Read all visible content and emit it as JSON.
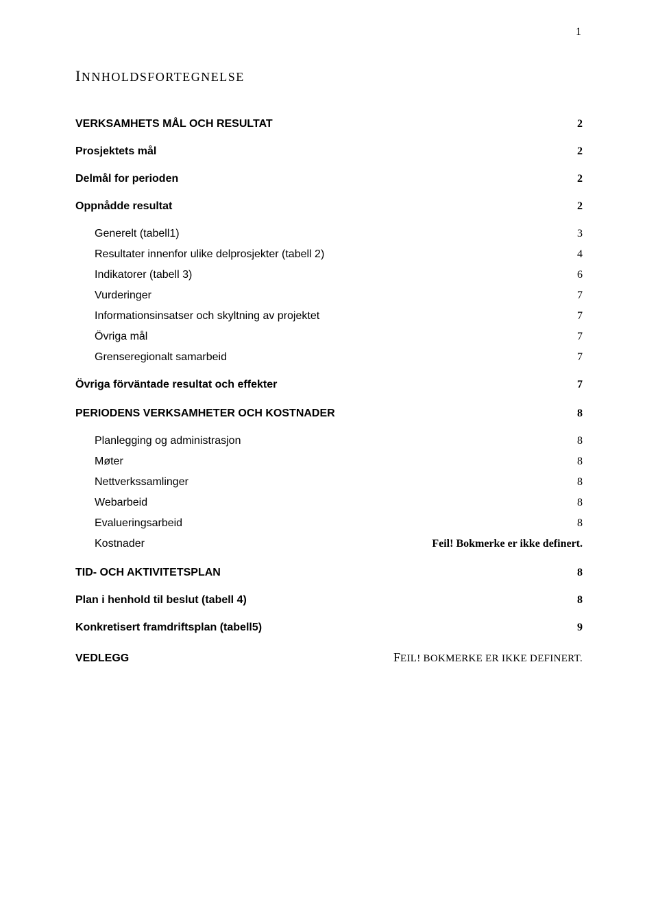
{
  "page_number": "1",
  "title_first": "I",
  "title_rest": "NNHOLDSFORTEGNELSE",
  "toc": {
    "s1": {
      "label": "VERKSAMHETS MÅL OCH RESULTAT",
      "page": "2"
    },
    "s1_1": {
      "label": "Prosjektets mål",
      "page": "2"
    },
    "s1_2": {
      "label": "Delmål for perioden",
      "page": "2"
    },
    "s1_3": {
      "label": "Oppnådde resultat",
      "page": "2"
    },
    "s1_3_a": {
      "label": "Generelt (tabell1)",
      "page": "3"
    },
    "s1_3_b": {
      "label": "Resultater innenfor ulike delprosjekter (tabell 2)",
      "page": "4"
    },
    "s1_3_c": {
      "label": "Indikatorer (tabell 3)",
      "page": "6"
    },
    "s1_3_d": {
      "label": "Vurderinger",
      "page": "7"
    },
    "s1_3_e": {
      "label": "Informationsinsatser och skyltning av projektet",
      "page": "7"
    },
    "s1_3_f": {
      "label": "Övriga mål",
      "page": "7"
    },
    "s1_3_g": {
      "label": "Grenseregionalt samarbeid",
      "page": "7"
    },
    "s1_4": {
      "label": "Övriga förväntade resultat och effekter",
      "page": "7"
    },
    "s2": {
      "label": "PERIODENS VERKSAMHETER OCH KOSTNADER",
      "page": "8"
    },
    "s2_a": {
      "label": "Planlegging og administrasjon",
      "page": "8"
    },
    "s2_b": {
      "label": "Møter",
      "page": "8"
    },
    "s2_c": {
      "label": "Nettverkssamlinger",
      "page": "8"
    },
    "s2_d": {
      "label": "Webarbeid",
      "page": "8"
    },
    "s2_e": {
      "label": "Evalueringsarbeid",
      "page": "8"
    },
    "s2_f": {
      "label": "Kostnader",
      "page_err": "Feil! Bokmerke er ikke definert."
    },
    "s3": {
      "label": "TID- OCH AKTIVITETSPLAN",
      "page": "8"
    },
    "s3_1": {
      "label": "Plan i henhold til beslut (tabell 4)",
      "page": "8"
    },
    "s3_2": {
      "label": "Konkretisert framdriftsplan (tabell5)",
      "page": "9"
    },
    "s4": {
      "label": "VEDLEGG",
      "page_err_first": "F",
      "page_err_rest": "EIL! BOKMERKE ER IKKE DEFINERT."
    }
  }
}
